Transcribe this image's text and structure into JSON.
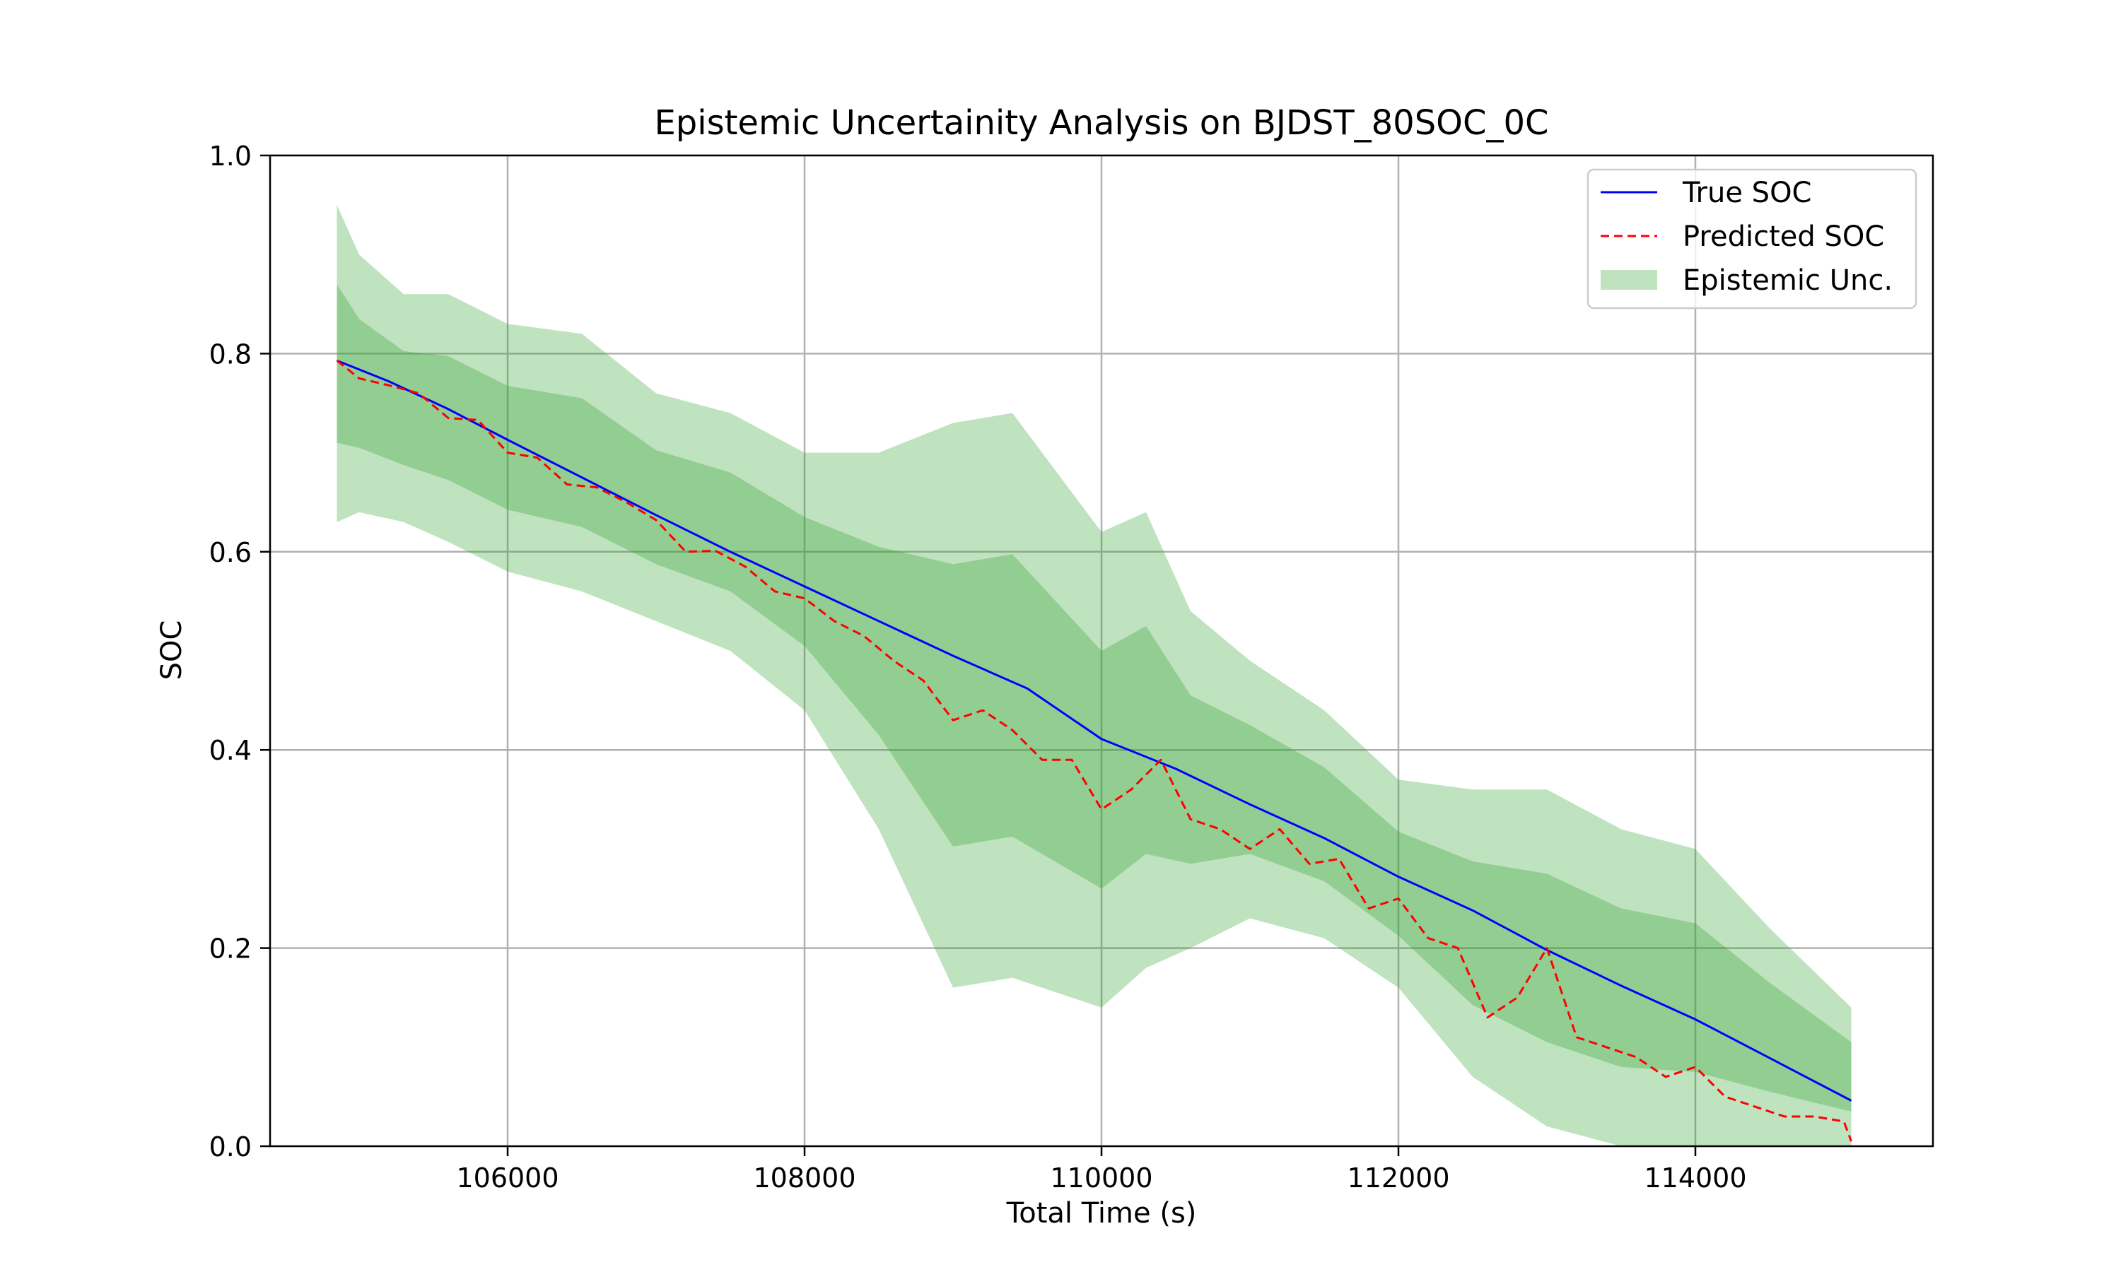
{
  "chart_data": {
    "type": "line",
    "title": "Epistemic Uncertainity Analysis on BJDST_80SOC_0C",
    "xlabel": "Total Time (s)",
    "ylabel": "SOC",
    "xlim": [
      104400,
      115600
    ],
    "ylim": [
      0.0,
      1.0
    ],
    "x_ticks": [
      106000,
      108000,
      110000,
      112000,
      114000
    ],
    "x_tick_labels": [
      "106000",
      "108000",
      "110000",
      "112000",
      "114000"
    ],
    "y_ticks": [
      0.0,
      0.2,
      0.4,
      0.6,
      0.8,
      1.0
    ],
    "y_tick_labels": [
      "0.0",
      "0.2",
      "0.4",
      "0.6",
      "0.8",
      "1.0"
    ],
    "grid": true,
    "legend_position": "top-right",
    "series": [
      {
        "name": "True SOC",
        "style": "solid",
        "color": "#0000ff",
        "x": [
          104850,
          105200,
          105600,
          106000,
          106500,
          107000,
          107500,
          108000,
          108500,
          109000,
          109500,
          110000,
          110500,
          111000,
          111500,
          112000,
          112500,
          113000,
          113500,
          114000,
          114500,
          115050
        ],
        "y": [
          0.793,
          0.772,
          0.744,
          0.713,
          0.675,
          0.637,
          0.6,
          0.565,
          0.53,
          0.495,
          0.462,
          0.411,
          0.381,
          0.345,
          0.311,
          0.272,
          0.238,
          0.198,
          0.162,
          0.128,
          0.089,
          0.046
        ]
      },
      {
        "name": "Predicted SOC",
        "style": "dashed",
        "color": "#ff0000",
        "x": [
          104850,
          105000,
          105200,
          105400,
          105600,
          105800,
          106000,
          106200,
          106400,
          106600,
          106800,
          107000,
          107200,
          107400,
          107600,
          107800,
          108000,
          108200,
          108400,
          108600,
          108800,
          109000,
          109200,
          109400,
          109600,
          109800,
          110000,
          110200,
          110400,
          110600,
          110800,
          111000,
          111200,
          111400,
          111600,
          111800,
          112000,
          112200,
          112400,
          112600,
          112800,
          113000,
          113200,
          113400,
          113600,
          113800,
          114000,
          114200,
          114400,
          114600,
          114800,
          115000,
          115050
        ],
        "y": [
          0.793,
          0.775,
          0.768,
          0.76,
          0.735,
          0.733,
          0.7,
          0.695,
          0.668,
          0.665,
          0.65,
          0.632,
          0.6,
          0.601,
          0.585,
          0.56,
          0.553,
          0.53,
          0.515,
          0.49,
          0.47,
          0.43,
          0.44,
          0.42,
          0.39,
          0.39,
          0.34,
          0.36,
          0.39,
          0.33,
          0.32,
          0.3,
          0.32,
          0.285,
          0.29,
          0.24,
          0.25,
          0.21,
          0.2,
          0.13,
          0.15,
          0.2,
          0.11,
          0.1,
          0.09,
          0.07,
          0.08,
          0.05,
          0.04,
          0.03,
          0.03,
          0.025,
          0.005
        ]
      },
      {
        "name": "Epistemic Unc.",
        "style": "fill",
        "color": "#2ca02c",
        "x": [
          104850,
          105000,
          105300,
          105600,
          106000,
          106500,
          107000,
          107500,
          108000,
          108500,
          109000,
          109400,
          110000,
          110300,
          110600,
          111000,
          111500,
          112000,
          112500,
          113000,
          113500,
          114000,
          114500,
          115050
        ],
        "lower": [
          0.63,
          0.64,
          0.63,
          0.61,
          0.58,
          0.56,
          0.53,
          0.5,
          0.44,
          0.32,
          0.16,
          0.17,
          0.14,
          0.18,
          0.2,
          0.23,
          0.21,
          0.16,
          0.07,
          0.02,
          0.0,
          0.0,
          0.0,
          0.0
        ],
        "upper": [
          0.95,
          0.9,
          0.86,
          0.86,
          0.83,
          0.82,
          0.76,
          0.74,
          0.7,
          0.7,
          0.73,
          0.74,
          0.62,
          0.64,
          0.54,
          0.49,
          0.44,
          0.37,
          0.36,
          0.36,
          0.32,
          0.3,
          0.22,
          0.14
        ]
      }
    ]
  }
}
